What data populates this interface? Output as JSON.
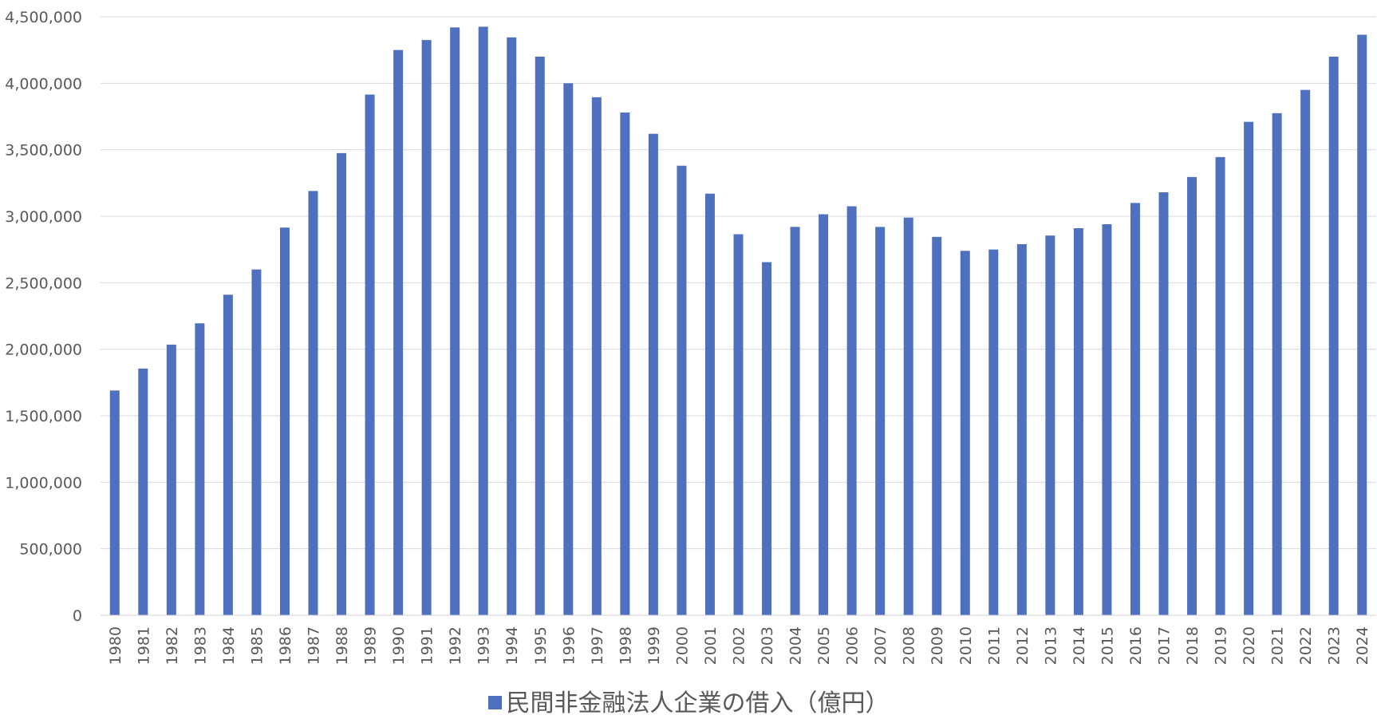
{
  "chart_data": {
    "type": "bar",
    "categories": [
      "1980",
      "1981",
      "1982",
      "1983",
      "1984",
      "1985",
      "1986",
      "1987",
      "1988",
      "1989",
      "1990",
      "1991",
      "1992",
      "1993",
      "1994",
      "1995",
      "1996",
      "1997",
      "1998",
      "1999",
      "2000",
      "2001",
      "2002",
      "2003",
      "2004",
      "2005",
      "2006",
      "2007",
      "2008",
      "2009",
      "2010",
      "2011",
      "2012",
      "2013",
      "2014",
      "2015",
      "2016",
      "2017",
      "2018",
      "2019",
      "2020",
      "2021",
      "2022",
      "2023",
      "2024"
    ],
    "series": [
      {
        "name": "民間非金融法人企業の借入（億円）",
        "values": [
          1690000,
          1855000,
          2035000,
          2195000,
          2410000,
          2600000,
          2915000,
          3190000,
          3475000,
          3915000,
          4250000,
          4325000,
          4420000,
          4425000,
          4345000,
          4200000,
          4000000,
          3895000,
          3780000,
          3620000,
          3380000,
          3170000,
          2865000,
          2655000,
          2920000,
          3015000,
          3075000,
          2920000,
          2990000,
          2845000,
          2740000,
          2750000,
          2790000,
          2855000,
          2910000,
          2940000,
          3100000,
          3180000,
          3295000,
          3445000,
          3710000,
          3775000,
          3950000,
          4200000,
          4365000
        ],
        "color": "#4f6fbf"
      }
    ],
    "y_ticks": [
      "0",
      "500,000",
      "1,000,000",
      "1,500,000",
      "2,000,000",
      "2,500,000",
      "3,000,000",
      "3,500,000",
      "4,000,000",
      "4,500,000"
    ],
    "ylim": [
      0,
      4500000
    ],
    "grid": true,
    "legend_position": "bottom",
    "title": "",
    "xlabel": "",
    "ylabel": ""
  }
}
